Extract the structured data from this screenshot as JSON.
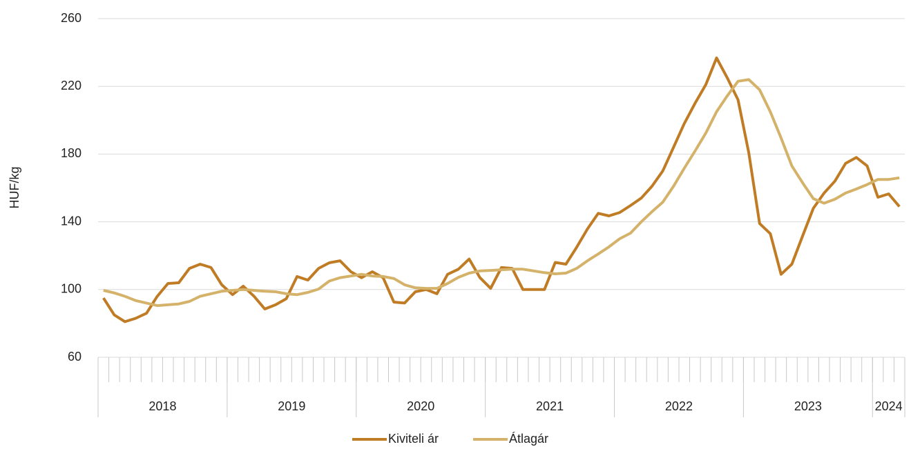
{
  "chart_data": {
    "type": "line",
    "y_label": "HUF/kg",
    "categories": [
      null,
      null,
      null,
      null,
      null,
      null,
      null,
      null,
      null,
      null,
      null,
      null,
      null,
      null,
      null,
      null,
      null,
      null,
      null,
      null,
      null,
      null,
      null,
      null,
      null,
      null,
      null,
      null,
      null,
      null,
      null,
      null,
      null,
      null,
      null,
      null,
      null,
      null,
      null,
      null,
      null,
      null,
      null,
      null,
      null,
      null,
      null,
      null,
      null,
      null,
      null,
      null,
      null,
      null,
      null,
      null,
      null,
      null,
      null,
      null,
      null,
      null,
      null,
      null,
      null,
      null,
      null,
      null,
      null,
      null,
      null,
      null,
      null,
      null,
      null
    ],
    "x_groups": [
      {
        "label": "2018",
        "span": 12
      },
      {
        "label": "2019",
        "span": 12
      },
      {
        "label": "2020",
        "span": 12
      },
      {
        "label": "2021",
        "span": 12
      },
      {
        "label": "2022",
        "span": 12
      },
      {
        "label": "2023",
        "span": 12
      },
      {
        "label": "2024",
        "span": 3
      }
    ],
    "series": [
      {
        "name": "Kiviteli ár",
        "color": "#c07b25",
        "values": [
          95,
          85,
          81,
          83,
          86,
          96,
          103.6,
          104,
          112.5,
          115,
          113,
          102.8,
          97,
          102,
          96,
          88.5,
          91,
          94.6,
          107.7,
          105.6,
          112.5,
          115.8,
          117,
          110.5,
          107,
          110.5,
          107,
          92.6,
          92,
          98.7,
          100,
          97.5,
          109,
          112,
          118,
          107,
          100.7,
          113,
          112.5,
          100,
          100,
          100,
          116,
          115,
          125,
          135.8,
          145,
          143.5,
          145.5,
          149.6,
          154,
          161,
          170,
          184,
          198,
          210,
          221,
          236.8,
          225,
          212,
          180.6,
          139,
          133,
          109,
          115,
          131.7,
          148,
          157,
          164,
          174.5,
          178,
          173,
          154.5,
          156.5,
          149
        ]
      },
      {
        "name": "Átlagár",
        "color": "#d4b26a",
        "values": [
          99.5,
          98,
          96,
          93.5,
          92,
          90.5,
          91,
          91.5,
          93,
          96,
          97.5,
          99,
          99.5,
          100,
          99.5,
          99,
          98.7,
          97.5,
          97,
          98.3,
          100.3,
          105,
          107,
          108,
          109,
          108,
          107.7,
          106.5,
          102.8,
          101,
          100.7,
          100.7,
          103.6,
          107.2,
          109.7,
          111,
          111.3,
          111.7,
          112,
          112,
          111,
          110,
          109.3,
          109.7,
          112.5,
          117,
          121,
          125.2,
          130,
          133.3,
          140,
          146,
          151.6,
          161,
          171.6,
          181.8,
          192.4,
          205,
          214.4,
          223,
          224,
          218,
          205,
          189.5,
          173,
          163,
          153.7,
          151,
          153.3,
          157,
          159.4,
          162,
          165,
          165,
          166
        ]
      }
    ],
    "ylim": [
      60,
      260
    ],
    "yticks": [
      60,
      100,
      140,
      180,
      220,
      260
    ],
    "grid": true,
    "legend": "bottom"
  }
}
